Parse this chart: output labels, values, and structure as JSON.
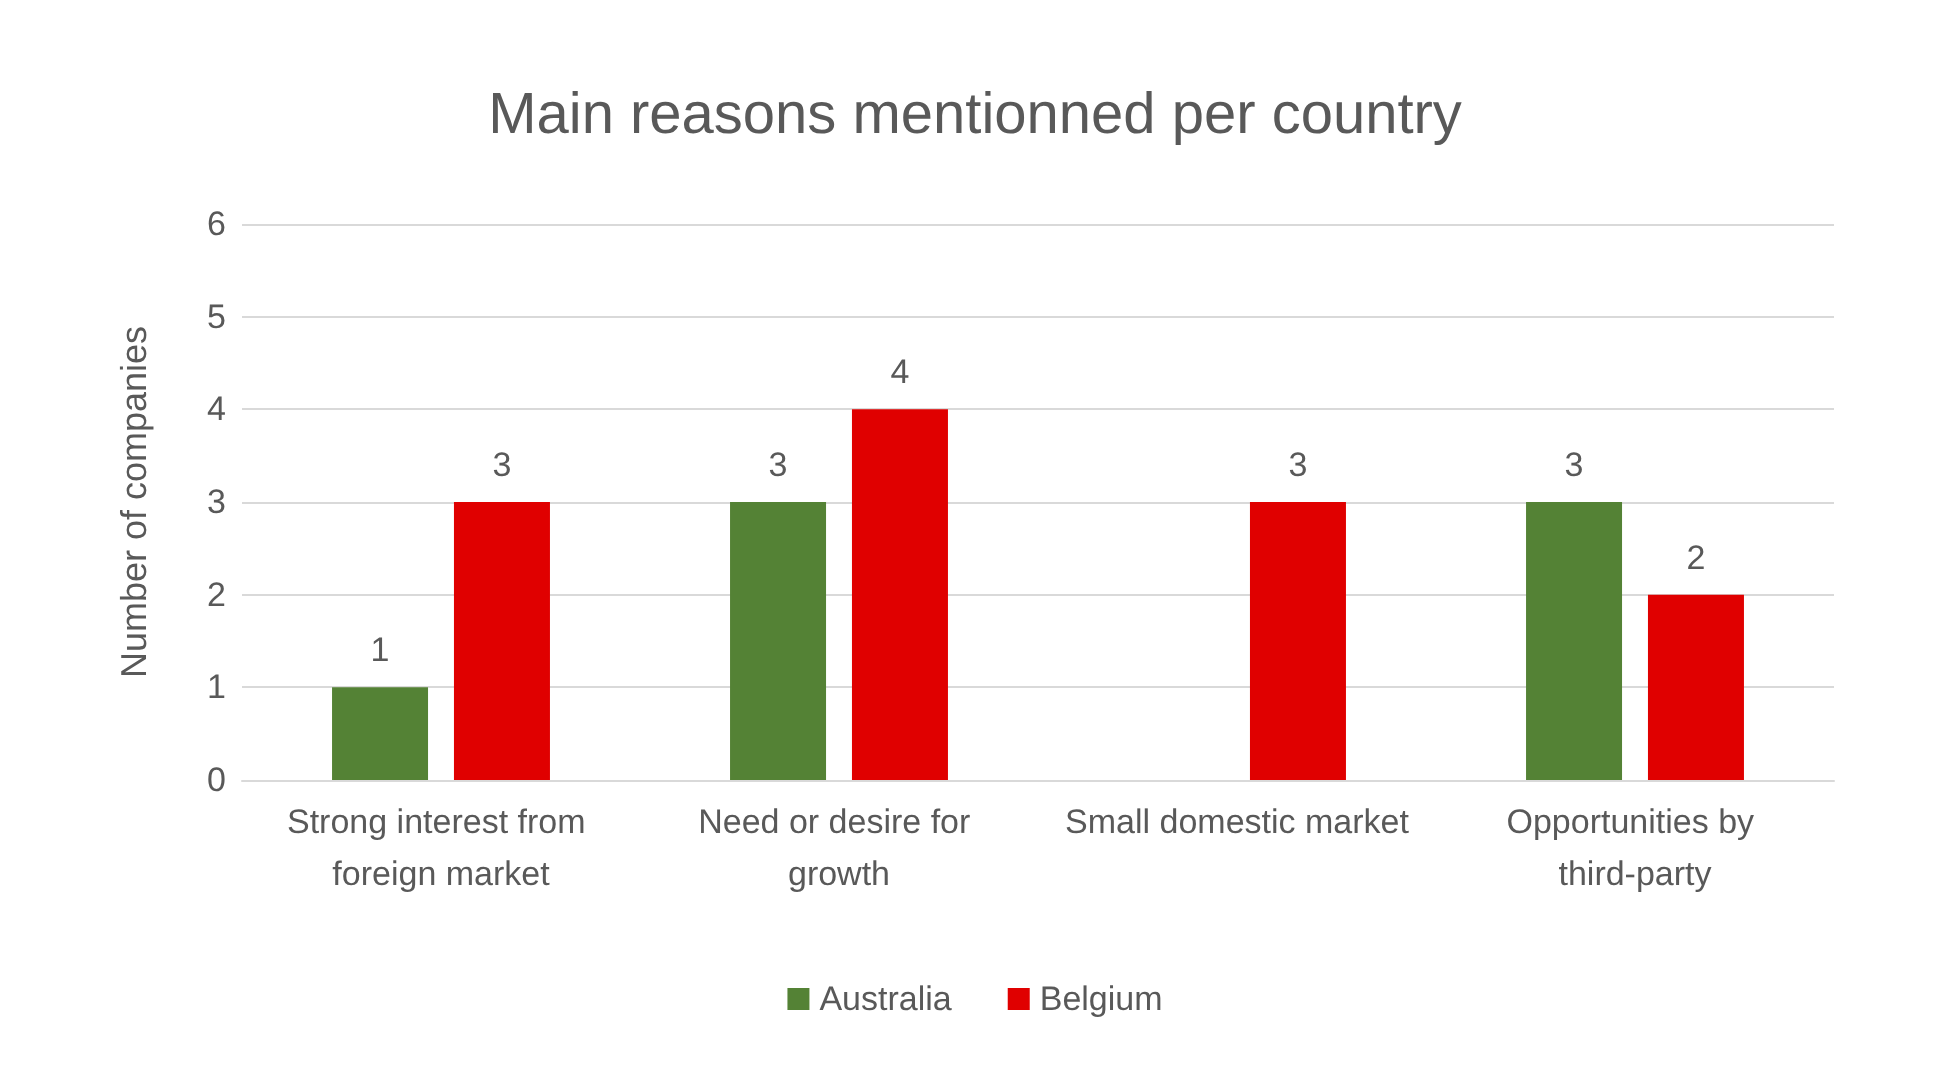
{
  "chart_data": {
    "type": "bar",
    "title": "Main reasons mentionned per country",
    "ylabel": "Number of companies",
    "categories": [
      "Strong interest from foreign market",
      "Need or desire for growth",
      "Small domestic market",
      "Opportunities by third-party"
    ],
    "series": [
      {
        "name": "Australia",
        "color": "#548235",
        "values": [
          1,
          3,
          null,
          3
        ]
      },
      {
        "name": "Belgium",
        "color": "#e00000",
        "values": [
          3,
          4,
          3,
          2
        ]
      }
    ],
    "ylim": [
      0,
      6
    ],
    "yticks": [
      0,
      1,
      2,
      3,
      4,
      5,
      6
    ],
    "grid": "y",
    "legend": "bottom",
    "data_labels": true
  }
}
